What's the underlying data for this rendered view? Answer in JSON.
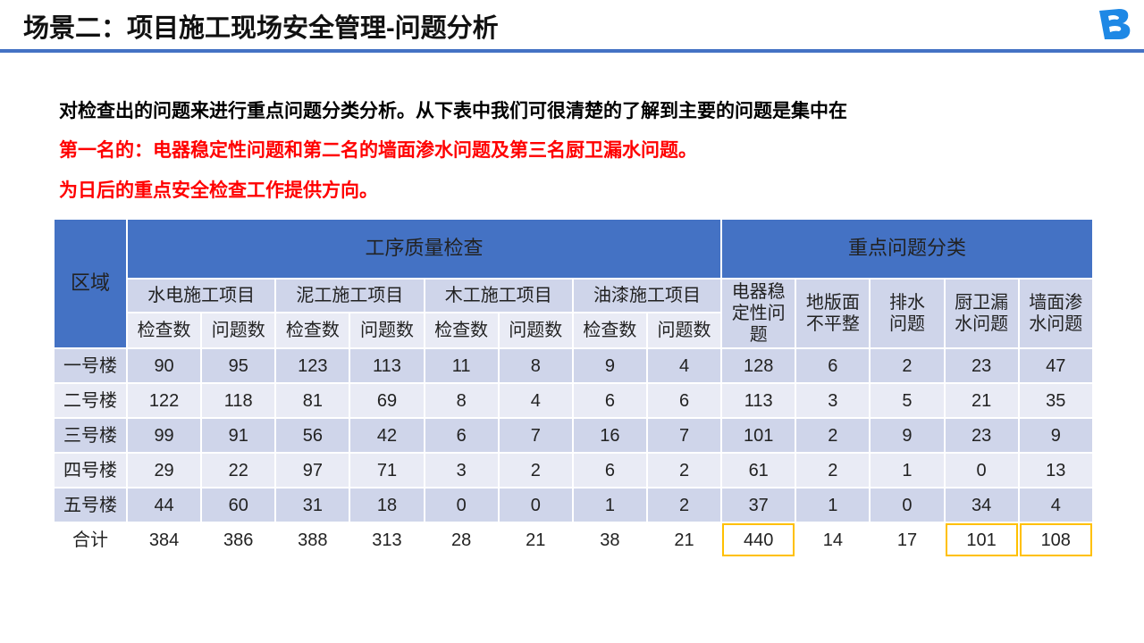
{
  "title": "场景二：项目施工现场安全管理-问题分析",
  "logo": {
    "icon": "b-logo-icon",
    "color": "#1E88E5"
  },
  "paragraphs": [
    {
      "text": "对检查出的问题来进行重点问题分类分析。从下表中我们可很清楚的了解到主要的问题是集中在",
      "color": "#111111"
    },
    {
      "text": "第一名的：电器稳定性问题和第二名的墙面渗水问题及第三名厨卫漏水问题。",
      "color": "#FF0000"
    },
    {
      "text": "为日后的重点安全检查工作提供方向。",
      "color": "#FF0000"
    }
  ],
  "colors": {
    "header": "#4472C4",
    "row_dark": "#CFD5EA",
    "row_light": "#E9EBF5",
    "highlight": "#FFC000"
  },
  "table": {
    "region_header": "区域",
    "group1": "工序质量检查",
    "group2": "重点问题分类",
    "projects": [
      "水电施工项目",
      "泥工施工项目",
      "木工施工项目",
      "油漆施工项目"
    ],
    "sub": [
      "检查数",
      "问题数"
    ],
    "issues": [
      "电器稳定性问题",
      "地版面不平整",
      "排水问题",
      "厨卫漏水问题",
      "墙面渗水问题"
    ],
    "rows": [
      {
        "name": "一号楼",
        "values": [
          "90",
          "95",
          "123",
          "113",
          "11",
          "8",
          "9",
          "4",
          "128",
          "6",
          "2",
          "23",
          "47"
        ]
      },
      {
        "name": "二号楼",
        "values": [
          "122",
          "118",
          "81",
          "69",
          "8",
          "4",
          "6",
          "6",
          "113",
          "3",
          "5",
          "21",
          "35"
        ]
      },
      {
        "name": "三号楼",
        "values": [
          "99",
          "91",
          "56",
          "42",
          "6",
          "7",
          "16",
          "7",
          "101",
          "2",
          "9",
          "23",
          "9"
        ]
      },
      {
        "name": "四号楼",
        "values": [
          "29",
          "22",
          "97",
          "71",
          "3",
          "2",
          "6",
          "2",
          "61",
          "2",
          "1",
          "0",
          "13"
        ]
      },
      {
        "name": "五号楼",
        "values": [
          "44",
          "60",
          "31",
          "18",
          "0",
          "0",
          "1",
          "2",
          "37",
          "1",
          "0",
          "34",
          "4"
        ]
      },
      {
        "name": "合计",
        "values": [
          "384",
          "386",
          "388",
          "313",
          "28",
          "21",
          "38",
          "21",
          "440",
          "14",
          "17",
          "101",
          "108"
        ]
      }
    ]
  }
}
